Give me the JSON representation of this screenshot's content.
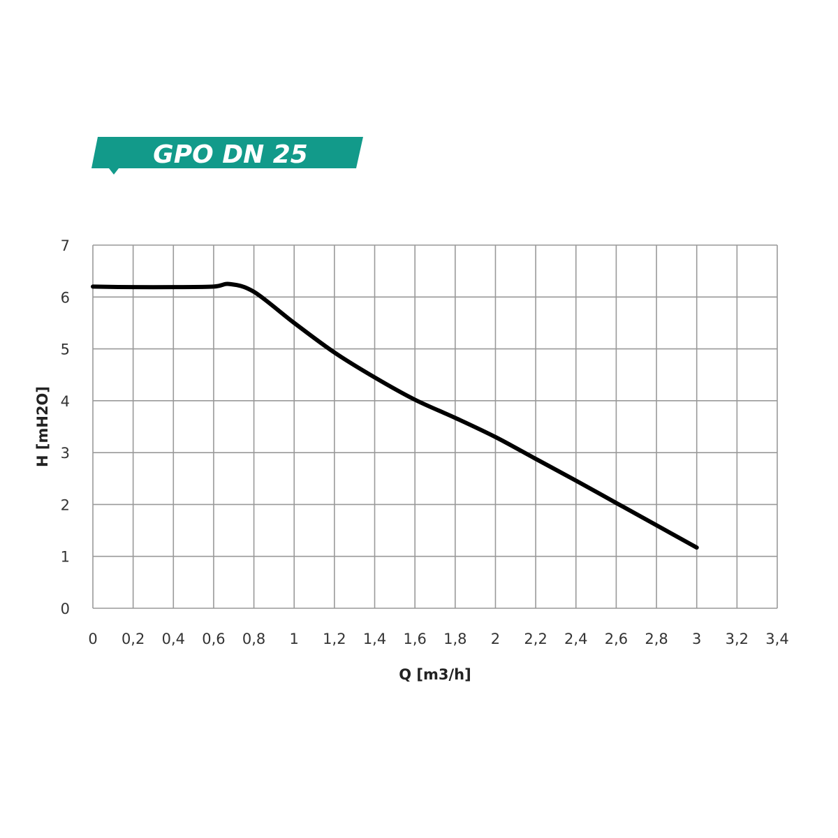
{
  "banner": {
    "title": "GPO DN 25",
    "color": "#129a8a"
  },
  "chart_data": {
    "type": "line",
    "title": "GPO DN 25",
    "xlabel": "Q [m3/h]",
    "ylabel": "H [mH2O]",
    "xlim": [
      0,
      3.4
    ],
    "ylim": [
      0,
      7
    ],
    "grid": true,
    "x_ticks": [
      "0",
      "0,2",
      "0,4",
      "0,6",
      "0,8",
      "1",
      "1,2",
      "1,4",
      "1,6",
      "1,8",
      "2",
      "2,2",
      "2,4",
      "2,6",
      "2,8",
      "3",
      "3,2",
      "3,4"
    ],
    "y_ticks": [
      "0",
      "1",
      "2",
      "3",
      "4",
      "5",
      "6",
      "7"
    ],
    "series": [
      {
        "color": "#000000",
        "x": [
          0,
          0.2,
          0.4,
          0.6,
          0.68,
          0.8,
          1.0,
          1.2,
          1.4,
          1.6,
          1.8,
          2.0,
          2.2,
          2.4,
          2.6,
          2.8,
          3.0
        ],
        "y": [
          6.2,
          6.19,
          6.19,
          6.2,
          6.25,
          6.1,
          5.5,
          4.93,
          4.45,
          4.02,
          3.67,
          3.3,
          2.88,
          2.46,
          2.03,
          1.6,
          1.17
        ]
      }
    ]
  }
}
